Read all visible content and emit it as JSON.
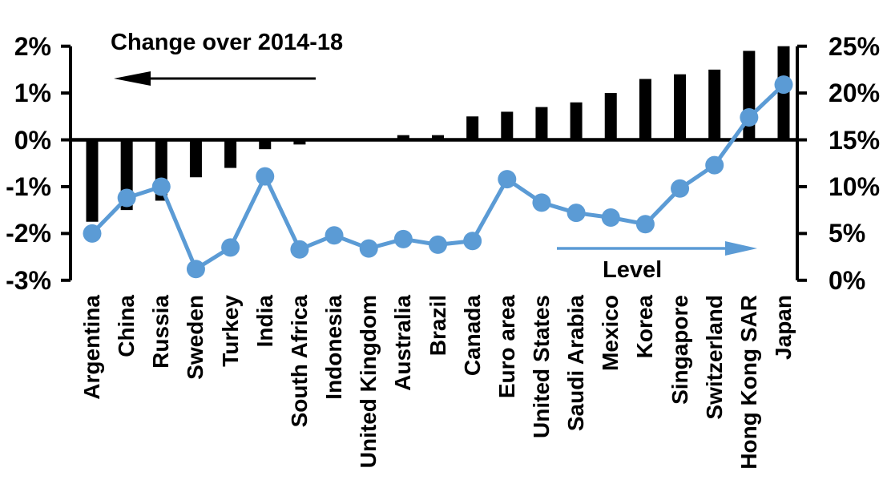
{
  "chart": {
    "left_label": "Change over 2014-18",
    "right_label": "Level",
    "colors": {
      "bar": "#000000",
      "line": "#5B9BD5",
      "background": "#ffffff",
      "text": "#000000"
    }
  },
  "chart_data": {
    "type": "bar",
    "subtype": "dual-axis bar + line",
    "title": "",
    "categories": [
      "Argentina",
      "China",
      "Russia",
      "Sweden",
      "Turkey",
      "India",
      "South Africa",
      "Indonesia",
      "United Kingdom",
      "Australia",
      "Brazil",
      "Canada",
      "Euro area",
      "United States",
      "Saudi Arabia",
      "Mexico",
      "Korea",
      "Singapore",
      "Switzerland",
      "Hong Kong SAR",
      "Japan"
    ],
    "series": [
      {
        "name": "Change over 2014-18",
        "type": "bar",
        "axis": "left",
        "unit": "%",
        "color": "#000000",
        "values": [
          -1.75,
          -1.5,
          -1.3,
          -0.8,
          -0.6,
          -0.2,
          -0.1,
          0,
          0,
          0.1,
          0.1,
          0.5,
          0.6,
          0.7,
          0.8,
          1.0,
          1.3,
          1.4,
          1.5,
          1.9,
          2.0
        ]
      },
      {
        "name": "Level",
        "type": "line",
        "axis": "right",
        "unit": "%",
        "color": "#5B9BD5",
        "values": [
          5.0,
          8.8,
          10.0,
          1.2,
          3.5,
          11.1,
          3.3,
          4.8,
          3.4,
          4.4,
          3.8,
          4.2,
          10.8,
          8.3,
          7.2,
          6.7,
          6.0,
          9.8,
          12.3,
          17.4,
          20.9
        ]
      }
    ],
    "left_axis": {
      "min": -3,
      "max": 2,
      "tick_step": 1,
      "tick_labels": [
        "2%",
        "1%",
        "0%",
        "-1%",
        "-2%",
        "-3%"
      ]
    },
    "right_axis": {
      "min": 0,
      "max": 25,
      "tick_step": 5,
      "tick_labels": [
        "25%",
        "20%",
        "15%",
        "10%",
        "5%",
        "0%"
      ]
    },
    "grid": false,
    "legend_position": "in-plot arrow annotations",
    "annotations": [
      {
        "text": "Change over 2014-18",
        "arrow": "points-left",
        "arrow_color": "#000000"
      },
      {
        "text": "Level",
        "arrow": "points-right",
        "arrow_color": "#5B9BD5"
      }
    ]
  }
}
